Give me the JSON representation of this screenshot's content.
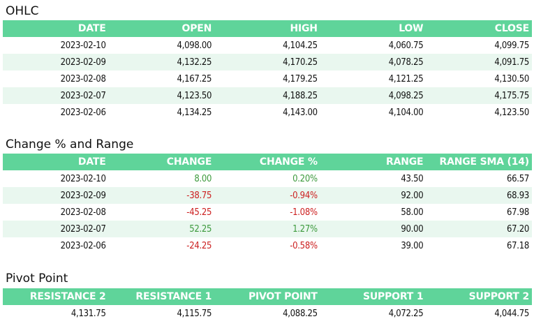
{
  "ohlc": {
    "title": "OHLC",
    "columns": [
      "DATE",
      "OPEN",
      "HIGH",
      "LOW",
      "CLOSE"
    ],
    "rows": [
      [
        "2023-02-10",
        "4,098.00",
        "4,104.25",
        "4,060.75",
        "4,099.75"
      ],
      [
        "2023-02-09",
        "4,132.25",
        "4,170.25",
        "4,078.25",
        "4,091.75"
      ],
      [
        "2023-02-08",
        "4,167.25",
        "4,179.25",
        "4,121.25",
        "4,130.50"
      ],
      [
        "2023-02-07",
        "4,123.50",
        "4,188.25",
        "4,098.25",
        "4,175.75"
      ],
      [
        "2023-02-06",
        "4,134.25",
        "4,143.00",
        "4,104.00",
        "4,123.50"
      ]
    ]
  },
  "change_range": {
    "title": "Change % and Range",
    "columns": [
      "DATE",
      "CHANGE",
      "CHANGE %",
      "RANGE",
      "RANGE SMA (14)"
    ],
    "rows": [
      [
        "2023-02-10",
        "8.00",
        "0.20%",
        "43.50",
        "66.57"
      ],
      [
        "2023-02-09",
        "-38.75",
        "-0.94%",
        "92.00",
        "68.93"
      ],
      [
        "2023-02-08",
        "-45.25",
        "-1.08%",
        "58.00",
        "67.98"
      ],
      [
        "2023-02-07",
        "52.25",
        "1.27%",
        "90.00",
        "67.20"
      ],
      [
        "2023-02-06",
        "-24.25",
        "-0.58%",
        "39.00",
        "67.18"
      ]
    ]
  },
  "pivot": {
    "title": "Pivot Point",
    "columns": [
      "RESISTANCE 2",
      "RESISTANCE 1",
      "PIVOT POINT",
      "SUPPORT 1",
      "SUPPORT 2"
    ],
    "rows": [
      [
        "4,131.75",
        "4,115.75",
        "4,088.25",
        "4,072.25",
        "4,044.75"
      ]
    ]
  },
  "colors": {
    "header_bg": "#5fd49a",
    "header_text": "#ffffff",
    "stripe_bg": "#e9f7ef",
    "positive": "#3d9a3d",
    "negative": "#cc1f1f"
  }
}
